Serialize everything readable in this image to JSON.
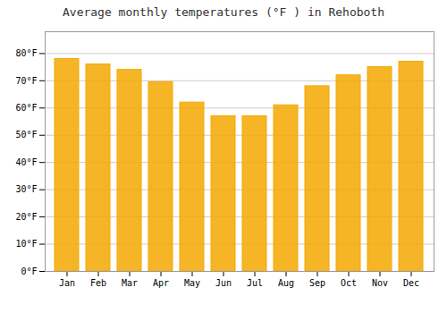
{
  "chart_data": {
    "type": "bar",
    "title": "Average monthly temperatures (°F ) in Rehoboth",
    "categories": [
      "Jan",
      "Feb",
      "Mar",
      "Apr",
      "May",
      "Jun",
      "Jul",
      "Aug",
      "Sep",
      "Oct",
      "Nov",
      "Dec"
    ],
    "values": [
      78,
      76,
      74,
      69.5,
      62,
      57,
      57,
      61,
      68,
      72,
      75,
      77
    ],
    "color": "#F5A800",
    "ylim": [
      0,
      88
    ],
    "yticks": [
      {
        "value": 0,
        "label": "0°F"
      },
      {
        "value": 10,
        "label": "10°F"
      },
      {
        "value": 20,
        "label": "20°F"
      },
      {
        "value": 30,
        "label": "30°F"
      },
      {
        "value": 40,
        "label": "40°F"
      },
      {
        "value": 50,
        "label": "50°F"
      },
      {
        "value": 60,
        "label": "60°F"
      },
      {
        "value": 70,
        "label": "70°F"
      },
      {
        "value": 80,
        "label": "80°F"
      }
    ],
    "grid": true
  }
}
